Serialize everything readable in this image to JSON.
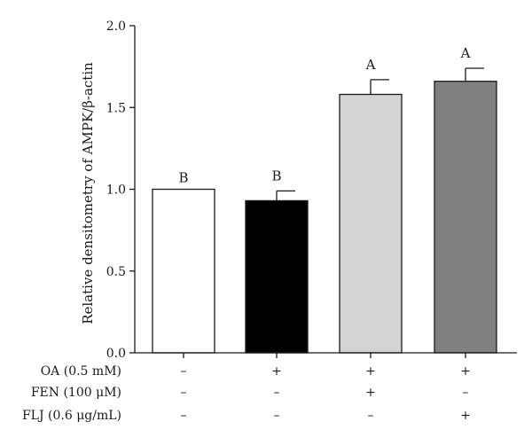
{
  "chart_data": {
    "type": "bar",
    "title": "",
    "xlabel": "",
    "ylabel": "Relative densitometry of AMPK/β-actin",
    "ylim": [
      0,
      2.0
    ],
    "yticks": [
      0.0,
      0.5,
      1.0,
      1.5,
      2.0
    ],
    "ytick_labels": [
      "0.0",
      "0.5",
      "1.0",
      "1.5",
      "2.0"
    ],
    "grid": false,
    "bars": [
      {
        "value": 1.0,
        "error": 0.0,
        "letter": "B",
        "color": "#ffffff"
      },
      {
        "value": 0.93,
        "error": 0.06,
        "letter": "B",
        "color": "#000000"
      },
      {
        "value": 1.58,
        "error": 0.09,
        "letter": "A",
        "color": "#d4d4d4"
      },
      {
        "value": 1.66,
        "error": 0.08,
        "letter": "A",
        "color": "#808080"
      }
    ],
    "treatment_table": [
      {
        "label": "OA (0.5 mM)",
        "signs": [
          "–",
          "+",
          "+",
          "+"
        ]
      },
      {
        "label": "FEN (100 μM)",
        "signs": [
          "–",
          "–",
          "+",
          "–"
        ]
      },
      {
        "label": "FLJ (0.6 μg/mL)",
        "signs": [
          "–",
          "–",
          "–",
          "+"
        ]
      }
    ]
  }
}
